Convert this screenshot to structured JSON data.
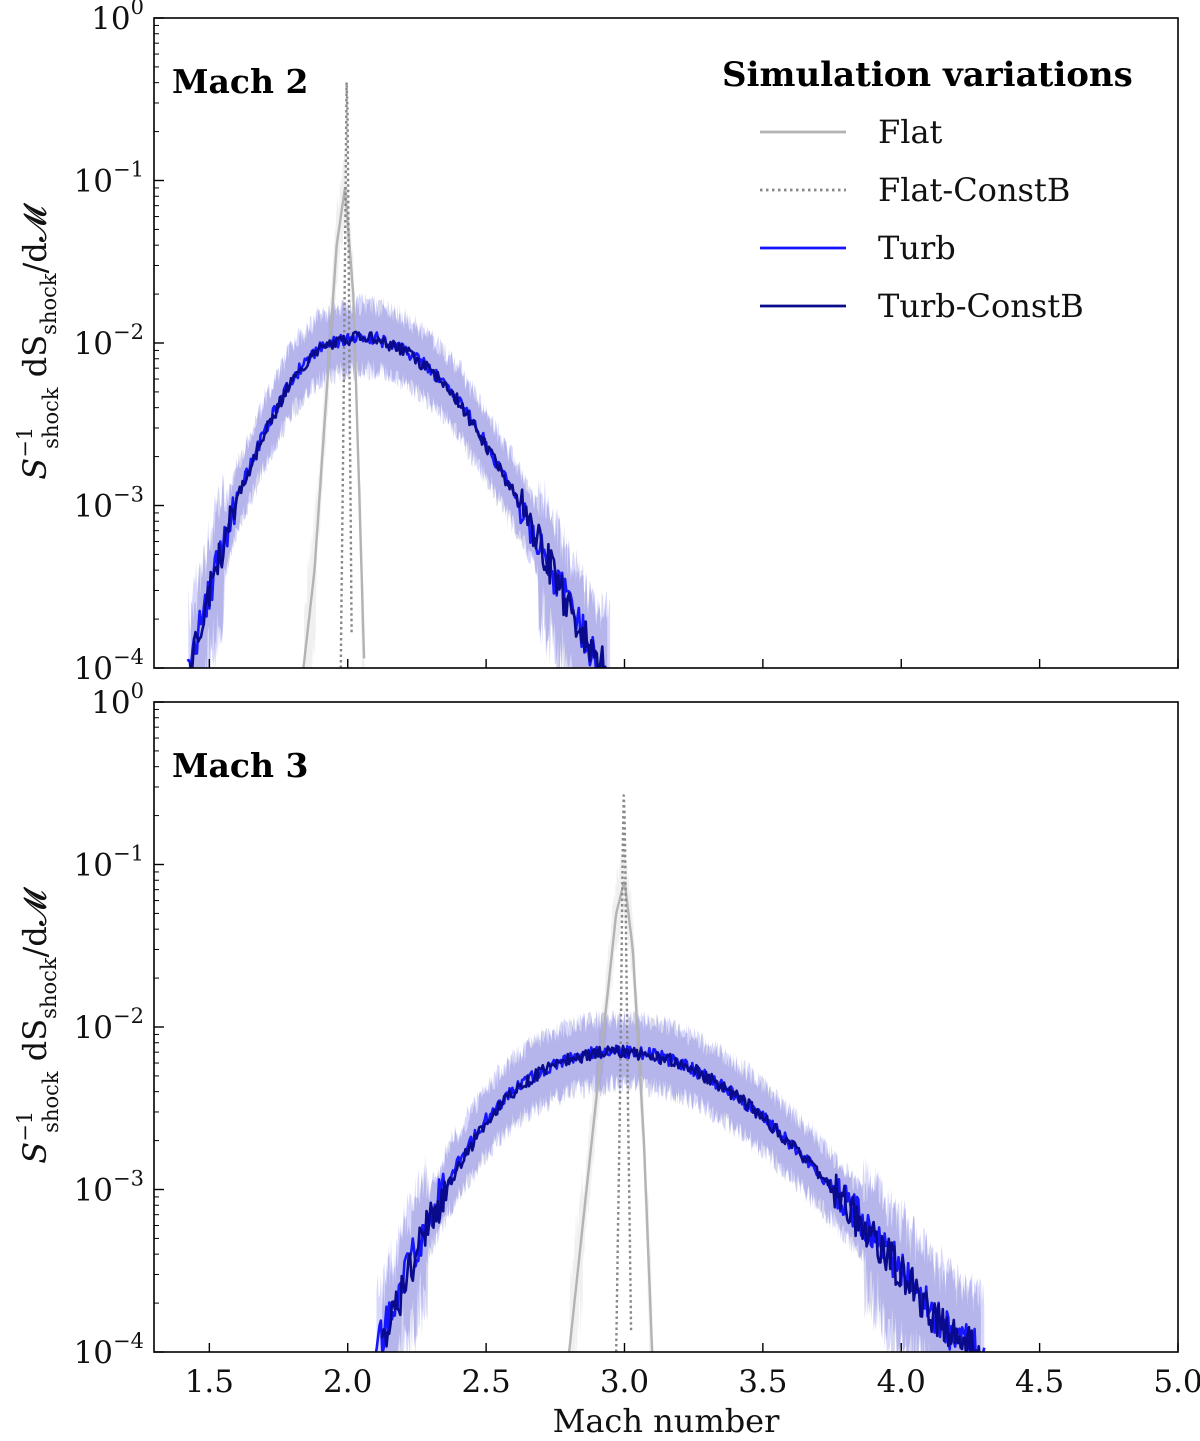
{
  "chart_data": [
    {
      "type": "line",
      "panel_label": "Mach 2",
      "center": 2.0,
      "yscale": "log",
      "ylim": [
        0.0001,
        1
      ],
      "xlim": [
        1.3,
        5.0
      ],
      "ylabel": "S_shock^-1 dS_shock/dM",
      "ylabel_parts": {
        "s": "S",
        "sup": "−1",
        "sub": "shock",
        "mid": " dS",
        "sub2": "shock",
        "tail": "/d𝓜"
      },
      "series": [
        {
          "name": "Flat",
          "color": "#b3b3b3",
          "style": "solid",
          "x": [
            1.84,
            1.88,
            1.92,
            1.96,
            1.99,
            2.02,
            2.04,
            2.06
          ],
          "y": [
            0.0001,
            0.0004,
            0.004,
            0.04,
            0.09,
            0.02,
            0.0015,
            0.0001
          ]
        },
        {
          "name": "Flat-ConstB",
          "color": "#888888",
          "style": "dotted",
          "x": [
            1.975,
            1.985,
            1.993,
            1.997,
            2.001,
            2.008,
            2.015
          ],
          "y": [
            0.0001,
            0.004,
            0.12,
            0.6,
            0.12,
            0.003,
            0.0001
          ]
        },
        {
          "name": "Turb",
          "color": "#1515ff",
          "style": "solid",
          "x": [
            1.42,
            1.5,
            1.6,
            1.7,
            1.8,
            1.9,
            2.0,
            2.05,
            2.1,
            2.2,
            2.3,
            2.4,
            2.5,
            2.6,
            2.7,
            2.8,
            2.9,
            2.95
          ],
          "y": [
            0.0001,
            0.0003,
            0.0011,
            0.0029,
            0.0061,
            0.0095,
            0.0107,
            0.011,
            0.0108,
            0.0092,
            0.0069,
            0.0045,
            0.0024,
            0.0012,
            0.00055,
            0.00024,
            0.00011,
            0.0001
          ]
        },
        {
          "name": "Turb-ConstB",
          "color": "#0a0a8c",
          "style": "solid",
          "x": [
            1.43,
            1.5,
            1.6,
            1.7,
            1.8,
            1.9,
            2.0,
            2.05,
            2.1,
            2.2,
            2.3,
            2.4,
            2.5,
            2.6,
            2.7,
            2.8,
            2.9,
            2.94
          ],
          "y": [
            0.0001,
            0.0003,
            0.0011,
            0.0028,
            0.006,
            0.0094,
            0.0106,
            0.0109,
            0.0107,
            0.0091,
            0.0068,
            0.0044,
            0.0023,
            0.0012,
            0.00055,
            0.00023,
            0.00011,
            0.0001
          ]
        }
      ]
    },
    {
      "type": "line",
      "panel_label": "Mach 3",
      "center": 3.0,
      "yscale": "log",
      "ylim": [
        0.0001,
        1
      ],
      "xlim": [
        1.3,
        5.0
      ],
      "xlabel": "Mach number",
      "xticks": [
        "1.5",
        "2.0",
        "2.5",
        "3.0",
        "3.5",
        "4.0",
        "4.5",
        "5.0"
      ],
      "ylabel": "S_shock^-1 dS_shock/dM",
      "ylabel_parts": {
        "s": "S",
        "sup": "−1",
        "sub": "shock",
        "mid": " dS",
        "sub2": "shock",
        "tail": "/d𝓜"
      },
      "series": [
        {
          "name": "Flat",
          "color": "#b3b3b3",
          "style": "solid",
          "x": [
            2.8,
            2.86,
            2.92,
            2.97,
            3.0,
            3.03,
            3.07,
            3.1
          ],
          "y": [
            0.0001,
            0.0009,
            0.008,
            0.05,
            0.08,
            0.03,
            0.002,
            0.0001
          ]
        },
        {
          "name": "Flat-ConstB",
          "color": "#888888",
          "style": "dotted",
          "x": [
            2.97,
            2.985,
            2.993,
            2.998,
            3.003,
            3.012,
            3.025
          ],
          "y": [
            0.0001,
            0.005,
            0.1,
            0.34,
            0.1,
            0.004,
            0.0001
          ]
        },
        {
          "name": "Turb",
          "color": "#1515ff",
          "style": "solid",
          "x": [
            2.1,
            2.2,
            2.3,
            2.4,
            2.5,
            2.6,
            2.7,
            2.8,
            2.9,
            3.0,
            3.1,
            3.2,
            3.3,
            3.4,
            3.5,
            3.6,
            3.7,
            3.8,
            3.9,
            4.0,
            4.1,
            4.2,
            4.3
          ],
          "y": [
            0.0001,
            0.00028,
            0.0007,
            0.0015,
            0.0027,
            0.0041,
            0.0054,
            0.0064,
            0.007,
            0.0071,
            0.0068,
            0.006,
            0.0049,
            0.0038,
            0.0028,
            0.0019,
            0.00128,
            0.00082,
            0.00052,
            0.00032,
            0.00019,
            0.00012,
            0.0001
          ]
        },
        {
          "name": "Turb-ConstB",
          "color": "#0a0a8c",
          "style": "solid",
          "x": [
            2.12,
            2.2,
            2.3,
            2.4,
            2.5,
            2.6,
            2.7,
            2.8,
            2.9,
            3.0,
            3.1,
            3.2,
            3.3,
            3.4,
            3.5,
            3.6,
            3.7,
            3.8,
            3.9,
            4.0,
            4.1,
            4.2,
            4.29
          ],
          "y": [
            0.0001,
            0.00025,
            0.00065,
            0.0014,
            0.0026,
            0.004,
            0.0053,
            0.0063,
            0.0069,
            0.007,
            0.0067,
            0.006,
            0.0049,
            0.0038,
            0.0028,
            0.0019,
            0.00126,
            0.0008,
            0.0005,
            0.00031,
            0.00018,
            0.00012,
            0.0001
          ]
        }
      ]
    }
  ],
  "yticks": [
    {
      "base": "10",
      "exp": "0",
      "value": 1
    },
    {
      "base": "10",
      "exp": "−1",
      "value": 0.1
    },
    {
      "base": "10",
      "exp": "−2",
      "value": 0.01
    },
    {
      "base": "10",
      "exp": "−3",
      "value": 0.001
    },
    {
      "base": "10",
      "exp": "−4",
      "value": 0.0001
    }
  ],
  "legend": {
    "title": "Simulation variations",
    "position": "top-right",
    "items": [
      {
        "label": "Flat",
        "color": "#b3b3b3",
        "style": "solid"
      },
      {
        "label": "Flat-ConstB",
        "color": "#888888",
        "style": "dotted"
      },
      {
        "label": "Turb",
        "color": "#1515ff",
        "style": "solid"
      },
      {
        "label": "Turb-ConstB",
        "color": "#0a0a8c",
        "style": "solid"
      }
    ]
  }
}
